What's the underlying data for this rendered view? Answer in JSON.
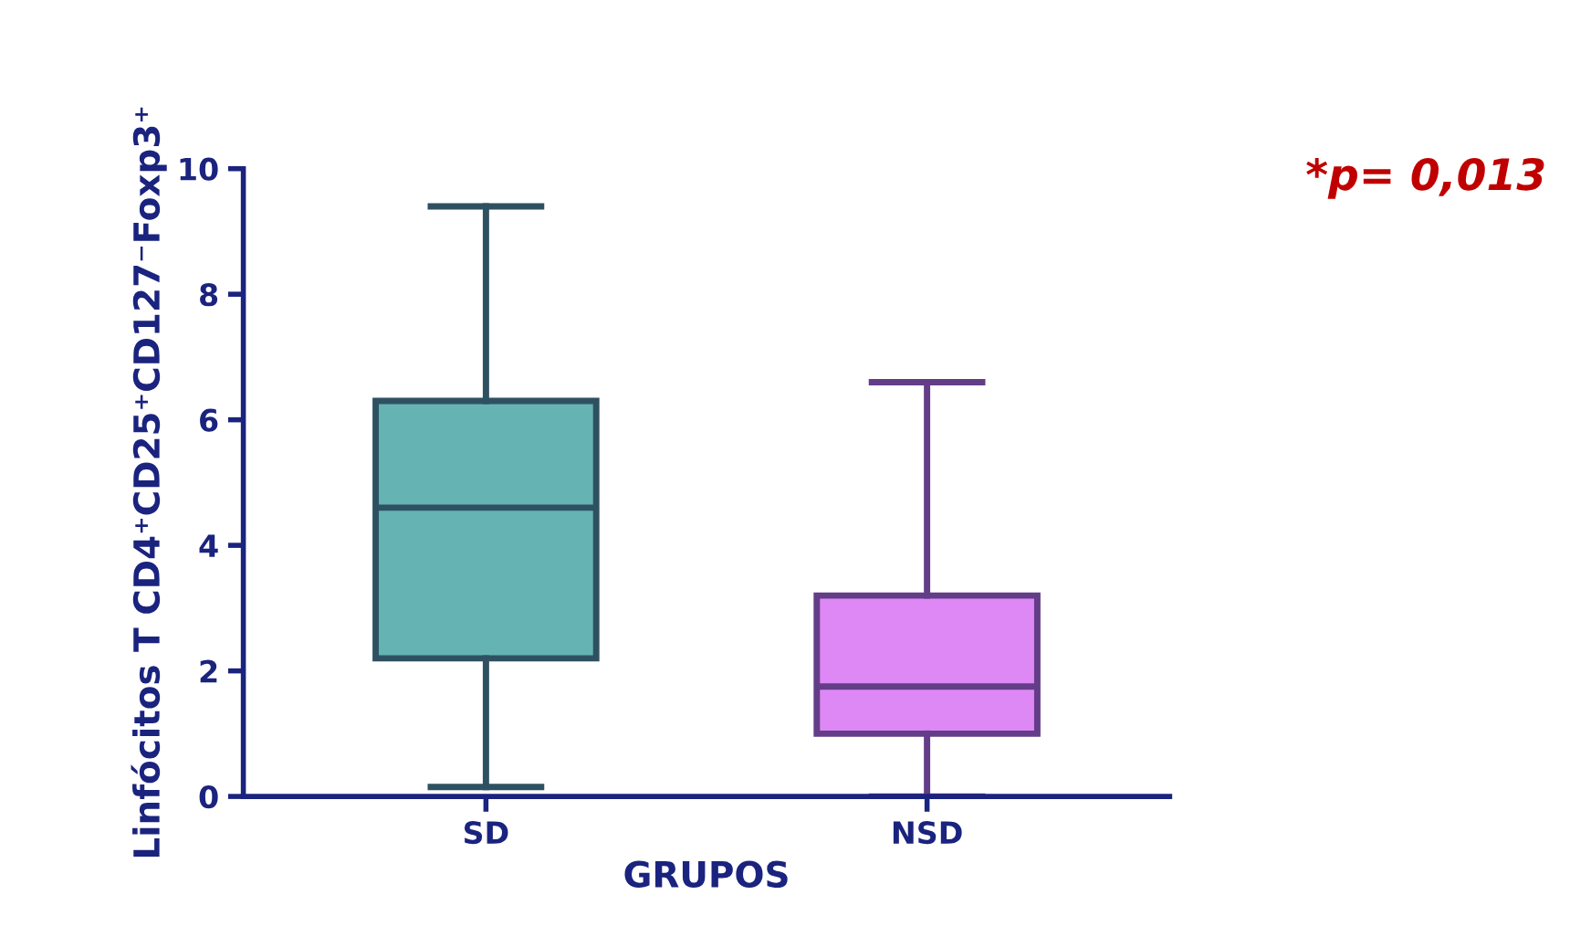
{
  "chart_data": {
    "type": "box",
    "xlabel": "GRUPOS",
    "ylabel": "Linfócitos T CD4⁺CD25⁺CD127⁻Foxp3⁺",
    "categories": [
      "SD",
      "NSD"
    ],
    "boxes": [
      {
        "low": 0.15,
        "q1": 2.2,
        "median": 4.6,
        "q3": 6.3,
        "high": 9.4
      },
      {
        "low": 0,
        "q1": 1.0,
        "median": 1.75,
        "q3": 3.2,
        "high": 6.6
      }
    ],
    "colors": [
      "#66b3b3",
      "#dd88f5"
    ],
    "ylim": [
      0,
      10
    ],
    "yticks": [
      0,
      2,
      4,
      6,
      8,
      10
    ],
    "grid": false,
    "annotations": [
      "*p= 0,013"
    ]
  }
}
